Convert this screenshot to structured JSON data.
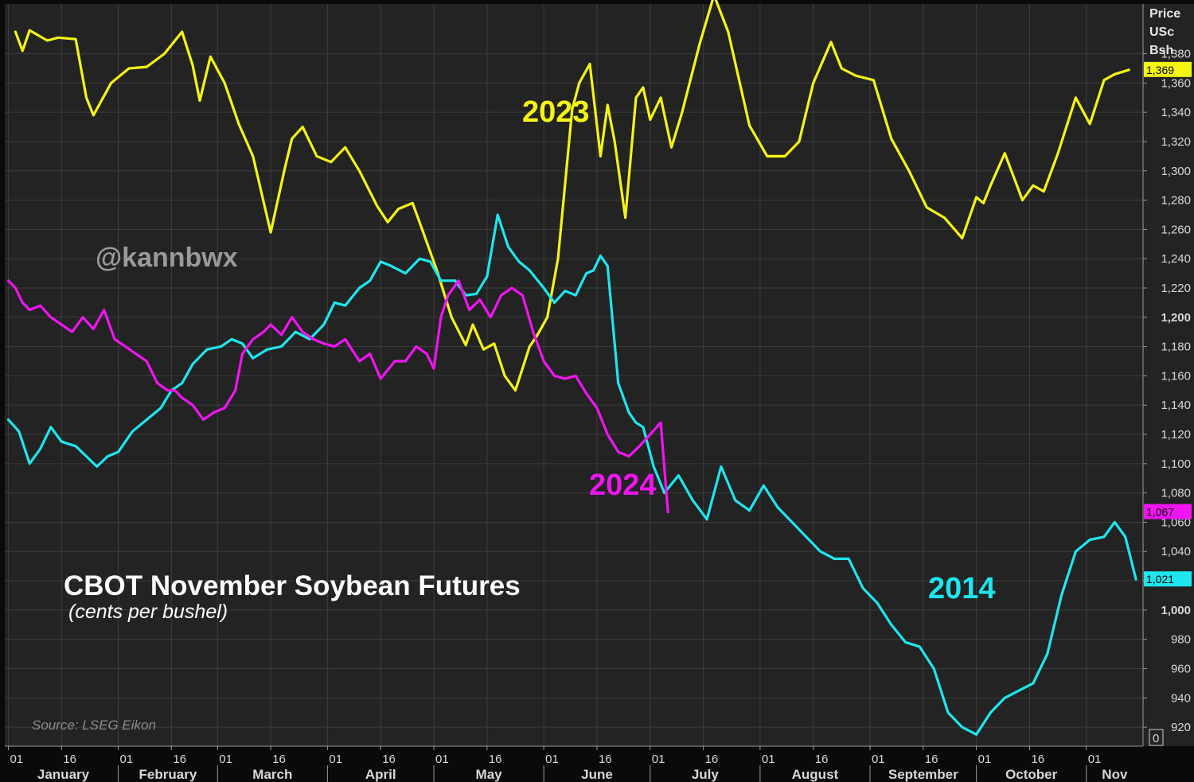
{
  "chart_data": {
    "type": "line",
    "title": "CBOT November Soybean Futures",
    "subtitle": "(cents per bushel)",
    "watermark": "@kannbwx",
    "source": "Source: LSEG Eikon",
    "y_unit": [
      "Price",
      "USc",
      "Bsh"
    ],
    "ylim": [
      905,
      1415
    ],
    "y_ticks": [
      920,
      940,
      960,
      980,
      1000,
      1020,
      1040,
      1060,
      1080,
      1100,
      1120,
      1140,
      1160,
      1180,
      1200,
      1220,
      1240,
      1260,
      1280,
      1300,
      1320,
      1340,
      1360,
      1380
    ],
    "y_tick_labels": [
      "920",
      "940",
      "960",
      "980",
      "1,000",
      "1,020",
      "1,040",
      "1,060",
      "1,080",
      "1,100",
      "1,120",
      "1,140",
      "1,160",
      "1,180",
      "1,200",
      "1,220",
      "1,240",
      "1,260",
      "1,280",
      "1,300",
      "1,320",
      "1,340",
      "1,360",
      "1,380"
    ],
    "y_bold_ticks": [
      1000,
      1200
    ],
    "zero_marker": "0",
    "grid": true,
    "x_unit": "day of year",
    "xlim": [
      1,
      319
    ],
    "months": [
      {
        "name": "January",
        "start": 1
      },
      {
        "name": "February",
        "start": 32
      },
      {
        "name": "March",
        "start": 60
      },
      {
        "name": "April",
        "start": 91
      },
      {
        "name": "May",
        "start": 121
      },
      {
        "name": "June",
        "start": 152
      },
      {
        "name": "July",
        "start": 182
      },
      {
        "name": "August",
        "start": 213
      },
      {
        "name": "September",
        "start": 244
      },
      {
        "name": "October",
        "start": 274
      },
      {
        "name": "Nov",
        "start": 305
      }
    ],
    "day_ticks": [
      {
        "label": "01",
        "x": 1
      },
      {
        "label": "16",
        "x": 16
      },
      {
        "label": "01",
        "x": 32
      },
      {
        "label": "16",
        "x": 47
      },
      {
        "label": "01",
        "x": 60
      },
      {
        "label": "16",
        "x": 75
      },
      {
        "label": "01",
        "x": 91
      },
      {
        "label": "16",
        "x": 106
      },
      {
        "label": "01",
        "x": 121
      },
      {
        "label": "16",
        "x": 136
      },
      {
        "label": "01",
        "x": 152
      },
      {
        "label": "16",
        "x": 167
      },
      {
        "label": "01",
        "x": 182
      },
      {
        "label": "16",
        "x": 197
      },
      {
        "label": "01",
        "x": 213
      },
      {
        "label": "16",
        "x": 228
      },
      {
        "label": "01",
        "x": 244
      },
      {
        "label": "16",
        "x": 259
      },
      {
        "label": "01",
        "x": 274
      },
      {
        "label": "16",
        "x": 289
      },
      {
        "label": "01",
        "x": 305
      }
    ],
    "series": [
      {
        "name": "2023",
        "color": "#f5f514",
        "last_value_label": "1,369",
        "x": [
          3,
          5,
          7,
          12,
          15,
          20,
          23,
          25,
          30,
          35,
          40,
          45,
          50,
          53,
          55,
          58,
          62,
          66,
          70,
          75,
          79,
          81,
          84,
          88,
          92,
          96,
          100,
          105,
          108,
          111,
          115,
          118,
          122,
          126,
          130,
          132,
          135,
          138,
          141,
          144,
          148,
          150,
          153,
          156,
          160,
          162,
          165,
          168,
          170,
          172,
          175,
          178,
          180,
          182,
          185,
          188,
          191,
          196,
          200,
          204,
          210,
          215,
          220,
          224,
          228,
          233,
          236,
          240,
          245,
          250,
          255,
          260,
          265,
          270,
          274,
          276,
          278,
          282,
          287,
          290,
          293,
          297,
          302,
          306,
          310,
          313,
          317
        ],
        "y": [
          1395,
          1382,
          1396,
          1389,
          1391,
          1390,
          1350,
          1338,
          1360,
          1370,
          1371,
          1380,
          1395,
          1372,
          1348,
          1378,
          1360,
          1332,
          1310,
          1258,
          1302,
          1322,
          1330,
          1310,
          1306,
          1316,
          1300,
          1276,
          1265,
          1274,
          1278,
          1258,
          1231,
          1200,
          1181,
          1195,
          1178,
          1182,
          1160,
          1150,
          1180,
          1187,
          1200,
          1240,
          1342,
          1360,
          1373,
          1310,
          1345,
          1320,
          1268,
          1350,
          1357,
          1335,
          1350,
          1316,
          1340,
          1387,
          1420,
          1395,
          1331,
          1310,
          1310,
          1320,
          1360,
          1388,
          1370,
          1365,
          1362,
          1322,
          1300,
          1275,
          1268,
          1254,
          1282,
          1278,
          1290,
          1312,
          1280,
          1290,
          1286,
          1312,
          1350,
          1332,
          1362,
          1366,
          1369
        ]
      },
      {
        "name": "2014",
        "color": "#1ee6ee",
        "last_value_label": "1,021",
        "x": [
          1,
          4,
          7,
          10,
          13,
          16,
          20,
          23,
          26,
          29,
          32,
          36,
          40,
          44,
          47,
          50,
          53,
          57,
          61,
          64,
          67,
          70,
          74,
          78,
          82,
          86,
          90,
          93,
          96,
          100,
          103,
          106,
          109,
          113,
          117,
          120,
          123,
          127,
          130,
          133,
          136,
          139,
          142,
          145,
          148,
          152,
          155,
          158,
          161,
          164,
          166,
          168,
          170,
          173,
          176,
          178,
          180,
          183,
          186,
          190,
          194,
          198,
          202,
          206,
          210,
          214,
          218,
          222,
          226,
          230,
          234,
          238,
          242,
          246,
          250,
          254,
          258,
          262,
          266,
          270,
          274,
          278,
          282,
          286,
          290,
          294,
          298,
          302,
          306,
          310,
          313,
          316,
          319
        ],
        "y": [
          1130,
          1122,
          1100,
          1110,
          1125,
          1115,
          1112,
          1105,
          1098,
          1105,
          1108,
          1122,
          1130,
          1138,
          1150,
          1155,
          1168,
          1178,
          1180,
          1185,
          1182,
          1172,
          1178,
          1180,
          1190,
          1185,
          1195,
          1210,
          1208,
          1220,
          1225,
          1238,
          1235,
          1230,
          1240,
          1238,
          1225,
          1225,
          1215,
          1216,
          1228,
          1270,
          1248,
          1238,
          1232,
          1220,
          1210,
          1218,
          1215,
          1230,
          1232,
          1242,
          1235,
          1155,
          1135,
          1128,
          1125,
          1098,
          1080,
          1092,
          1075,
          1062,
          1098,
          1075,
          1068,
          1085,
          1070,
          1060,
          1050,
          1040,
          1035,
          1035,
          1015,
          1005,
          990,
          978,
          975,
          960,
          930,
          920,
          915,
          930,
          940,
          945,
          950,
          970,
          1010,
          1040,
          1048,
          1050,
          1060,
          1050,
          1021
        ]
      },
      {
        "name": "2024",
        "color": "#f015f0",
        "last_value_label": "1,067",
        "x": [
          1,
          3,
          5,
          7,
          10,
          13,
          16,
          19,
          22,
          25,
          28,
          31,
          34,
          37,
          40,
          43,
          46,
          48,
          50,
          53,
          56,
          59,
          62,
          65,
          67,
          70,
          73,
          75,
          78,
          81,
          84,
          87,
          90,
          93,
          96,
          100,
          103,
          106,
          110,
          113,
          116,
          119,
          121,
          123,
          125,
          128,
          131,
          134,
          137,
          140,
          143,
          146,
          149,
          152,
          155,
          158,
          161,
          164,
          167,
          170,
          173,
          176,
          179,
          182,
          185,
          187
        ],
        "y": [
          1225,
          1220,
          1210,
          1205,
          1208,
          1200,
          1195,
          1190,
          1200,
          1192,
          1205,
          1185,
          1180,
          1175,
          1170,
          1155,
          1150,
          1150,
          1145,
          1140,
          1130,
          1135,
          1138,
          1150,
          1175,
          1185,
          1190,
          1195,
          1188,
          1200,
          1190,
          1185,
          1182,
          1180,
          1185,
          1170,
          1175,
          1158,
          1170,
          1170,
          1180,
          1175,
          1165,
          1200,
          1215,
          1225,
          1205,
          1212,
          1200,
          1215,
          1220,
          1215,
          1190,
          1170,
          1160,
          1158,
          1160,
          1148,
          1138,
          1120,
          1108,
          1105,
          1112,
          1120,
          1128,
          1067
        ]
      }
    ],
    "series_labels": [
      {
        "text": "2023",
        "series": "2023"
      },
      {
        "text": "2024",
        "series": "2024"
      },
      {
        "text": "2014",
        "series": "2014"
      }
    ]
  }
}
